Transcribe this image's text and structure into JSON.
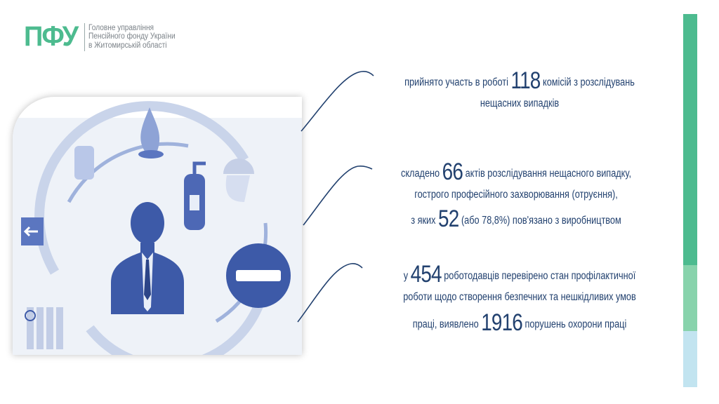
{
  "logo": {
    "mark": "ПФУ",
    "lines": [
      "Головне управління",
      "Пенсійного фонду України",
      "в Житомирській області"
    ]
  },
  "colors": {
    "brand_green": "#4dbb8f",
    "text_blue": "#22416f",
    "bar_dark": "#4dbb8f",
    "bar_mid": "#88d3ac",
    "bar_light": "#c2e4f0"
  },
  "stats": [
    {
      "lines": [
        {
          "pre": "прийнято участь в роботі ",
          "num": "118",
          "post": " комісій з розслідувань"
        },
        {
          "pre": "нещасних випадків",
          "num": "",
          "post": ""
        }
      ]
    },
    {
      "lines": [
        {
          "pre": "складено ",
          "num": "66",
          "post": " актів розслідування нещасного випадку,"
        },
        {
          "pre": "гострого професійного захворювання (отруєння),",
          "num": "",
          "post": ""
        },
        {
          "pre": "з яких ",
          "num": "52",
          "post": " (або 78,8%) пов'язано з виробництвом"
        }
      ]
    },
    {
      "lines": [
        {
          "pre": "у ",
          "num": "454",
          "post": " роботодавців перевірено стан профілактичної"
        },
        {
          "pre": "роботи щодо створення безпечних та нешкідливих умов",
          "num": "",
          "post": ""
        },
        {
          "pre": "праці, виявлено ",
          "num": "1916",
          "post": "  порушень охорони праці"
        }
      ]
    }
  ]
}
